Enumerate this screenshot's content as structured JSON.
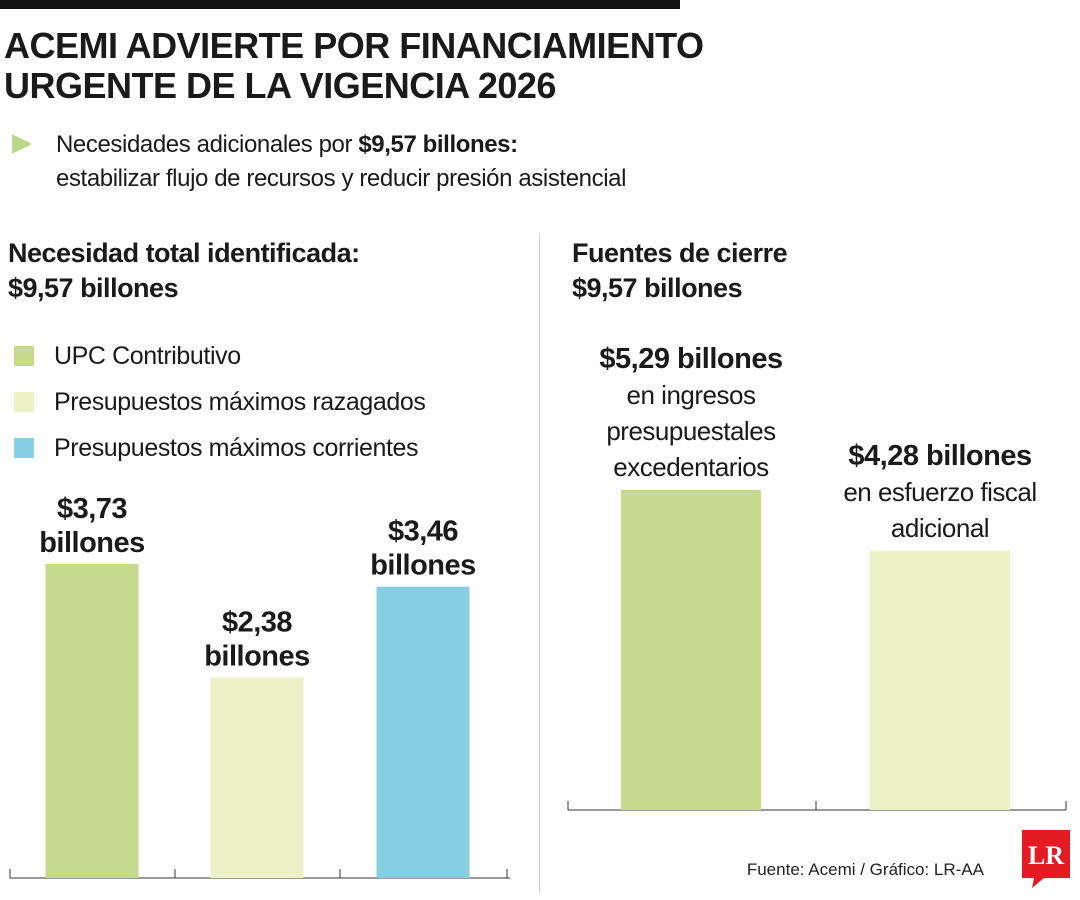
{
  "title_lines": [
    "ACEMI ADVIERTE POR FINANCIAMIENTO",
    "URGENTE DE LA VIGENCIA 2026"
  ],
  "subtitle": {
    "line1_prefix": "Necesidades adicionales por ",
    "line1_bold": "$9,57 billones:",
    "line2": "estabilizar flujo de recursos y reducir presión asistencial"
  },
  "colors": {
    "green": "#c5da8c",
    "pale": "#ecf1c8",
    "blue": "#86cfe3",
    "bullet": "#b9d88a",
    "logo_red": "#e31b23"
  },
  "icons": {
    "bullet": "triangle-right-icon",
    "logo": "lr-logo"
  },
  "source": "Fuente: Acemi / Gráfico: LR-AA",
  "logo_text": "LR",
  "chart_data": [
    {
      "type": "bar",
      "title_lines": [
        "Necesidad total identificada:",
        "$9,57 billones"
      ],
      "legend": [
        {
          "label": "UPC Contributivo",
          "color": "#c5da8c"
        },
        {
          "label": "Presupuestos máximos razagados",
          "color": "#ecf1c8"
        },
        {
          "label": "Presupuestos máximos corrientes",
          "color": "#86cfe3"
        }
      ],
      "legend_placement": "top-left",
      "values": [
        3.73,
        2.38,
        3.46
      ],
      "labels": [
        [
          "$3,73",
          "billones"
        ],
        [
          "$2,38",
          "billones"
        ],
        [
          "$3,46",
          "billones"
        ]
      ],
      "colors": [
        "#c5da8c",
        "#ecf1c8",
        "#86cfe3"
      ],
      "unit": "billones",
      "ylim": [
        0,
        3.73
      ],
      "grid": false
    },
    {
      "type": "bar",
      "title_lines": [
        "Fuentes de cierre",
        "$9,57 billones"
      ],
      "values": [
        5.29,
        4.28
      ],
      "labels": [
        [
          "$5,29 billones",
          "en ingresos",
          "presupuestales",
          "excedentarios"
        ],
        [
          "$4,28 billones",
          "en esfuerzo fiscal",
          "adicional"
        ]
      ],
      "colors": [
        "#c5da8c",
        "#ecf1c8"
      ],
      "unit": "billones",
      "ylim": [
        0,
        5.29
      ],
      "grid": false
    }
  ]
}
